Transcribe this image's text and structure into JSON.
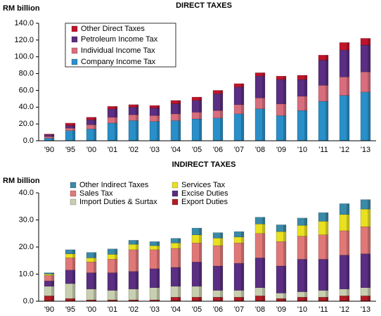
{
  "chart_data": [
    {
      "type": "stacked_bar",
      "title": "DIRECT TAXES",
      "ylabel": "RM  billion",
      "categories": [
        "'90",
        "'95",
        "'00",
        "'01",
        "'02",
        "'03",
        "'04",
        "'05",
        "'06",
        "'07",
        "'08",
        "'09",
        "'10",
        "'11",
        "'12",
        "'13"
      ],
      "series": [
        {
          "name": "Company Income Tax",
          "color": "#2a8fc8",
          "values": [
            3,
            12,
            14,
            21,
            24,
            23,
            24,
            26,
            27,
            32,
            38,
            30,
            36,
            47,
            54,
            58
          ]
        },
        {
          "name": "Individual Income Tax",
          "color": "#d86d7d",
          "values": [
            2,
            3,
            5,
            7,
            7,
            7,
            8,
            8,
            9,
            11,
            13,
            14,
            17,
            19,
            22,
            24
          ]
        },
        {
          "name": "Petroleum Income Tax",
          "color": "#5a2e82",
          "values": [
            2,
            3,
            6,
            10,
            9,
            9,
            12,
            14,
            20,
            21,
            26,
            29,
            20,
            30,
            32,
            32
          ]
        },
        {
          "name": "Other Direct Taxes",
          "color": "#c0142a",
          "values": [
            1,
            3,
            3,
            3,
            3,
            3,
            4,
            4,
            4,
            4,
            4,
            4,
            5,
            6,
            9,
            8
          ]
        }
      ],
      "ylim": [
        0,
        140
      ],
      "yticks": [
        {
          "value": 0,
          "label": "0.0"
        },
        {
          "value": 20,
          "label": "20.0"
        },
        {
          "value": 40,
          "label": "40.0"
        },
        {
          "value": 60,
          "label": "60.0"
        },
        {
          "value": 80,
          "label": "80.0"
        },
        {
          "value": 100,
          "label": "100.0"
        },
        {
          "value": 120,
          "label": "120.0"
        },
        {
          "value": 140,
          "label": "140.0"
        }
      ],
      "grid": false,
      "legend": "upper left"
    },
    {
      "type": "stacked_bar",
      "title": "INDIRECT TAXES",
      "ylabel": "RM  billion",
      "categories": [
        "'90",
        "'95",
        "'00",
        "'01",
        "'02",
        "'03",
        "'04",
        "'05",
        "'06",
        "'07",
        "'08",
        "'09",
        "'10",
        "'11",
        "'12",
        "'13"
      ],
      "series": [
        {
          "name": "Export Duties",
          "color": "#b01c24",
          "values": [
            2,
            1,
            0.5,
            0.5,
            0.5,
            0.5,
            1.5,
            1.5,
            1.5,
            1.5,
            2,
            1,
            1.5,
            1.5,
            2,
            2
          ]
        },
        {
          "name": "Import Duties & Surtax",
          "color": "#c8cfb0",
          "values": [
            3.5,
            5.5,
            4,
            3.5,
            4,
            4.5,
            4,
            4,
            2.5,
            2.5,
            3,
            2,
            2,
            2.5,
            2.5,
            3
          ]
        },
        {
          "name": "Excise Duties",
          "color": "#5a2e82",
          "values": [
            2,
            5,
            6,
            6.5,
            6.5,
            7,
            7,
            9,
            9,
            10,
            11,
            10,
            12,
            11.5,
            12.5,
            12.5
          ]
        },
        {
          "name": "Sales Tax",
          "color": "#e07878",
          "values": [
            2,
            4.5,
            4,
            5,
            8,
            7,
            7,
            7,
            7.5,
            7.5,
            9,
            9,
            8.5,
            9,
            9,
            10
          ]
        },
        {
          "name": "Services Tax",
          "color": "#e8e020",
          "values": [
            0.5,
            1.5,
            1.5,
            1.8,
            2,
            1.5,
            2,
            3,
            2.8,
            2.2,
            3.5,
            3.7,
            4,
            5,
            6,
            6.5
          ]
        },
        {
          "name": "Other Indirect Taxes",
          "color": "#3a8aa8",
          "values": [
            0.5,
            1.5,
            2,
            2,
            1.5,
            1.5,
            1.7,
            2.5,
            2,
            2,
            2.5,
            2.5,
            2.7,
            3.2,
            4,
            3.5
          ]
        }
      ],
      "ylim": [
        0,
        40
      ],
      "yticks": [
        {
          "value": 0,
          "label": "0.0"
        },
        {
          "value": 10,
          "label": "10.0"
        },
        {
          "value": 20,
          "label": "20.0"
        },
        {
          "value": 30,
          "label": "30.0"
        },
        {
          "value": 40,
          "label": "40.0"
        }
      ],
      "grid": false,
      "legend": "upper left"
    }
  ]
}
